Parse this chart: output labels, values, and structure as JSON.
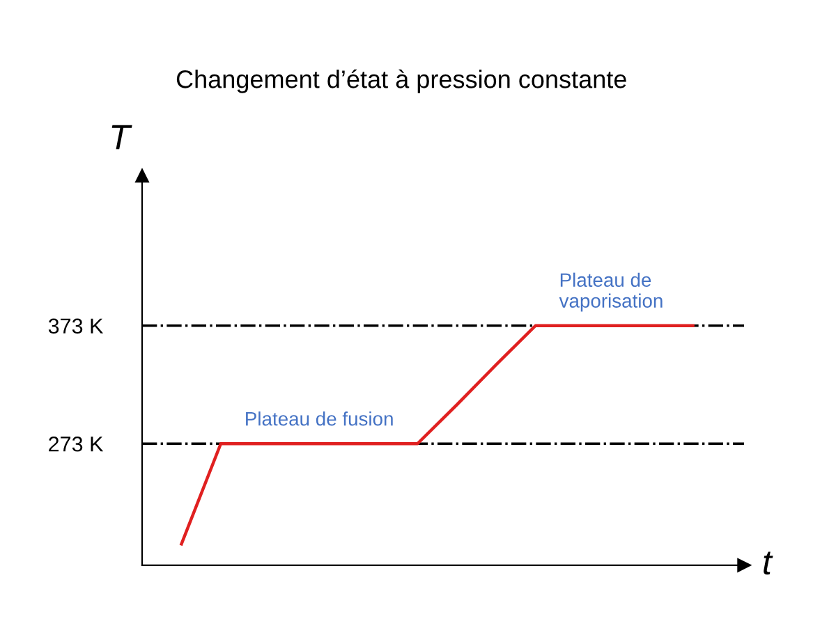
{
  "chart_data": {
    "type": "line",
    "title": "Changement d’état à pression constante",
    "xlabel": "t",
    "ylabel": "T",
    "categories": [
      null,
      null,
      null,
      null,
      null,
      null,
      null,
      null,
      null,
      null,
      null,
      null,
      null,
      null
    ],
    "series": [
      {
        "color": "#e02020",
        "values": [
          188,
          273,
          273,
          273,
          273,
          273,
          273,
          306,
          340,
          373,
          373,
          373,
          373,
          373
        ]
      }
    ],
    "ylim": [
      170,
      500
    ],
    "yticks": [
      {
        "value": 273,
        "label": "273 K"
      },
      {
        "value": 373,
        "label": "373 K"
      }
    ],
    "ref_lines": [
      {
        "axis": "y",
        "value": 273,
        "color": "#000000",
        "line_style": "dashdot"
      },
      {
        "axis": "y",
        "value": 373,
        "color": "#000000",
        "line_style": "dashdot"
      }
    ],
    "annotations": [
      "Plateau de fusion",
      "Plateau de\nvaporisation"
    ],
    "grid": false,
    "legend": false,
    "marker": "none",
    "line_style": "solid"
  }
}
